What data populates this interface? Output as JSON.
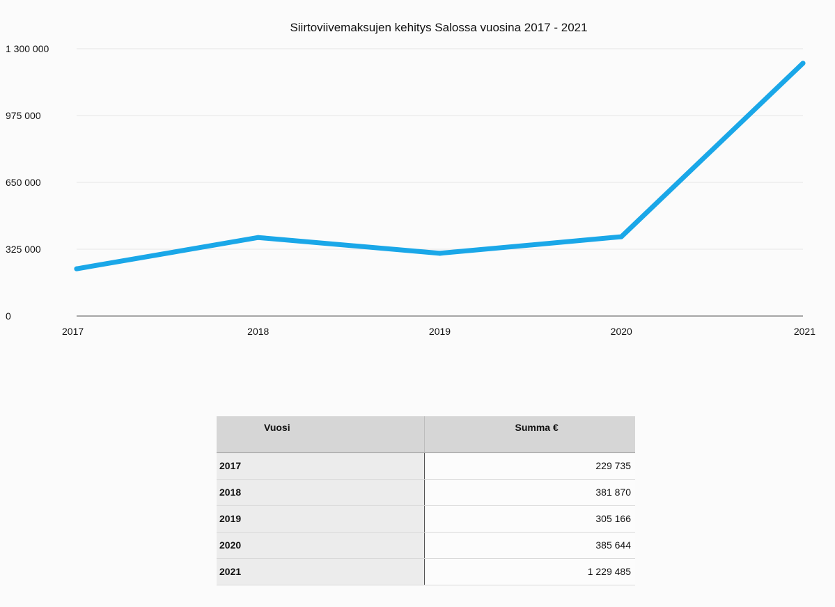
{
  "chart_data": {
    "type": "line",
    "title": "Siirtoviivemaksujen kehitys Salossa vuosina 2017 - 2021",
    "x": [
      "2017",
      "2018",
      "2019",
      "2020",
      "2021"
    ],
    "series": [
      {
        "values": [
          229735,
          381870,
          305166,
          385644,
          1229485
        ]
      }
    ],
    "y_ticks": [
      "0",
      "325 000",
      "650 000",
      "975 000",
      "1 300 000"
    ],
    "y_tick_values": [
      0,
      325000,
      650000,
      975000,
      1300000
    ],
    "ylim": [
      0,
      1300000
    ],
    "xlabel": "",
    "ylabel": "",
    "grid": true,
    "line_color": "#1aa7e8"
  },
  "table": {
    "headers": [
      "Vuosi",
      "Summa €"
    ],
    "rows": [
      {
        "year": "2017",
        "sum": "229 735"
      },
      {
        "year": "2018",
        "sum": "381 870"
      },
      {
        "year": "2019",
        "sum": "305 166"
      },
      {
        "year": "2020",
        "sum": "385 644"
      },
      {
        "year": "2021",
        "sum": "1 229 485"
      }
    ]
  }
}
